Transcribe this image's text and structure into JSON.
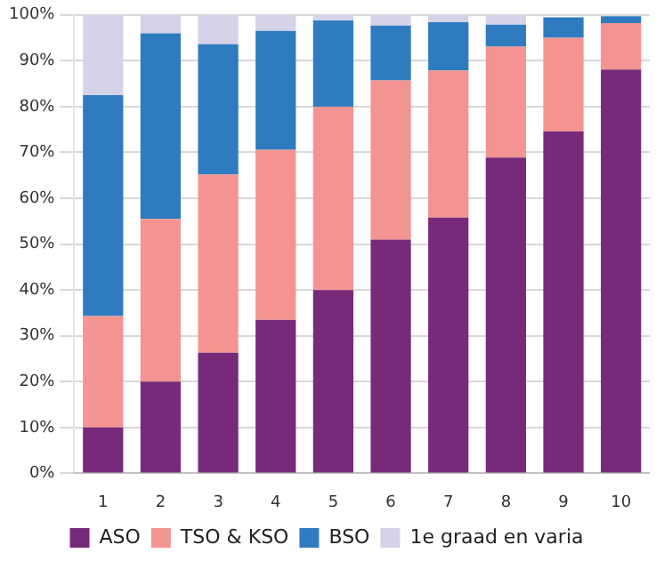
{
  "chart_data": {
    "type": "bar",
    "stacked": true,
    "categories": [
      "1",
      "2",
      "3",
      "4",
      "5",
      "6",
      "7",
      "8",
      "9",
      "10"
    ],
    "series": [
      {
        "name": "ASO",
        "color": "#772a7a",
        "values": [
          10,
          20,
          26.3,
          33.5,
          40,
          51,
          55.8,
          68.9,
          74.6,
          88.1
        ]
      },
      {
        "name": "TSO & KSO",
        "color": "#f49490",
        "values": [
          24.3,
          35.5,
          38.9,
          37.1,
          40,
          34.7,
          32.1,
          24.2,
          20.4,
          10.1
        ]
      },
      {
        "name": "BSO",
        "color": "#2f7bc0",
        "values": [
          48.2,
          40.5,
          28.4,
          25.9,
          18.8,
          12,
          10.5,
          4.8,
          4.5,
          1.5
        ]
      },
      {
        "name": "1e graad en varia",
        "color": "#d5d3e8",
        "values": [
          17.5,
          4,
          6.4,
          3.5,
          1.2,
          2.3,
          1.6,
          2.1,
          null,
          null
        ]
      }
    ],
    "ylim": [
      0,
      100
    ],
    "yticks": [
      {
        "value": 0,
        "label": "0%"
      },
      {
        "value": 10,
        "label": "10%"
      },
      {
        "value": 20,
        "label": "20%"
      },
      {
        "value": 30,
        "label": "30%"
      },
      {
        "value": 40,
        "label": "40%"
      },
      {
        "value": 50,
        "label": "50%"
      },
      {
        "value": 60,
        "label": "60%"
      },
      {
        "value": 70,
        "label": "70%"
      },
      {
        "value": 80,
        "label": "80%"
      },
      {
        "value": 90,
        "label": "90%"
      },
      {
        "value": 100,
        "label": "100%"
      }
    ],
    "grid": "y",
    "legend": "bottom"
  }
}
